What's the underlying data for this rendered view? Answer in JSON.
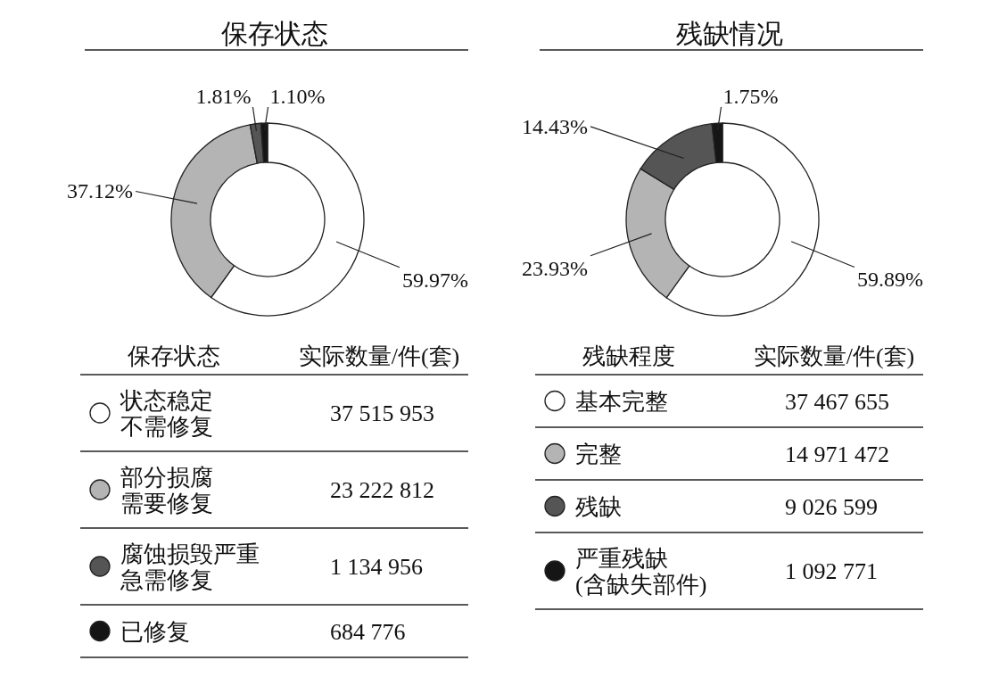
{
  "chart_data": [
    {
      "type": "donut",
      "title": "保存状态",
      "legend_title": "保存状态",
      "legend": "bottom",
      "categories": [
        "状态稳定不需修复",
        "部分损腐需要修复",
        "腐蚀损毁严重急需修复",
        "已修复"
      ],
      "values": [
        59.97,
        37.12,
        1.81,
        1.1
      ],
      "value_labels": [
        "59.97%",
        "37.12%",
        "1.81%",
        "1.10%"
      ],
      "colors": [
        "#ffffff",
        "#b4b4b4",
        "#555555",
        "#151515"
      ],
      "annotations": [
        "实际数量/件(套)",
        "37 515 953",
        "23 222 812",
        "1 134 956",
        "684 776"
      ]
    },
    {
      "type": "donut",
      "title": "残缺情况",
      "legend_title": "残缺程度",
      "legend": "bottom",
      "categories": [
        "基本完整",
        "完整",
        "残缺",
        "严重残缺(含缺失部件)"
      ],
      "values": [
        59.89,
        23.93,
        14.43,
        1.75
      ],
      "value_labels": [
        "59.89%",
        "23.93%",
        "14.43%",
        "1.75%"
      ],
      "colors": [
        "#ffffff",
        "#b4b4b4",
        "#555555",
        "#151515"
      ],
      "annotations": [
        "实际数量/件(套)",
        "37 467 655",
        "14 971 472",
        "9 026 599",
        "1 092 771"
      ]
    }
  ]
}
